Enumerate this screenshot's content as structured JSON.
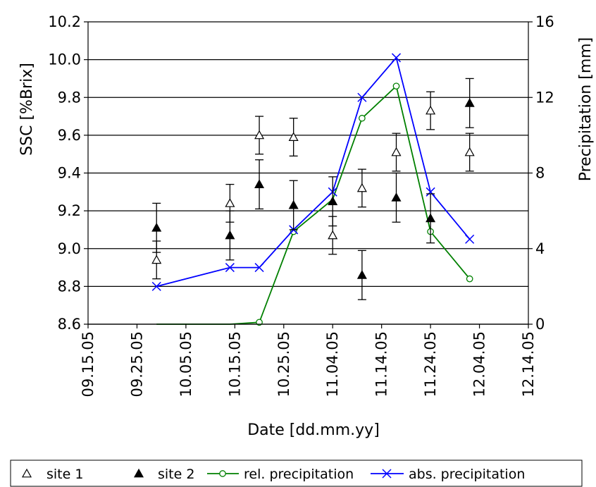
{
  "chart_data": {
    "type": "line",
    "xlabel": "Date [dd.mm.yy]",
    "ylabel_left": "SSC [%Brix]",
    "ylabel_right": "Precipitation [mm]",
    "x_ticks": [
      "09.15.05",
      "09.25.05",
      "10.05.05",
      "10.15.05",
      "10.25.05",
      "11.04.05",
      "11.14.05",
      "11.24.05",
      "12.04.05",
      "12.14.05"
    ],
    "ylim_left": [
      8.6,
      10.2
    ],
    "ylim_right": [
      0,
      16
    ],
    "y_ticks_left": [
      "8.6",
      "8.8",
      "9.0",
      "9.2",
      "9.4",
      "9.6",
      "9.8",
      "10.0",
      "10.2"
    ],
    "y_ticks_right": [
      "0",
      "4",
      "8",
      "12",
      "16"
    ],
    "grid": "horizontal",
    "legend_position": "bottom",
    "series": [
      {
        "name": "site 1",
        "axis": "left",
        "marker": "open-triangle",
        "color": "#000000",
        "points": [
          {
            "x": "09.29.05",
            "y": 8.94,
            "err": 0.1
          },
          {
            "x": "10.14.05",
            "y": 9.24,
            "err": 0.1
          },
          {
            "x": "10.20.05",
            "y": 9.6,
            "err": 0.1
          },
          {
            "x": "10.27.05",
            "y": 9.59,
            "err": 0.1
          },
          {
            "x": "11.04.05",
            "y": 9.07,
            "err": 0.1
          },
          {
            "x": "11.10.05",
            "y": 9.32,
            "err": 0.1
          },
          {
            "x": "11.17.05",
            "y": 9.51,
            "err": 0.1
          },
          {
            "x": "11.24.05",
            "y": 9.73,
            "err": 0.1
          },
          {
            "x": "12.02.05",
            "y": 9.51,
            "err": 0.1
          }
        ]
      },
      {
        "name": "site 2",
        "axis": "left",
        "marker": "filled-triangle",
        "color": "#000000",
        "points": [
          {
            "x": "09.29.05",
            "y": 9.11,
            "err": 0.13
          },
          {
            "x": "10.14.05",
            "y": 9.07,
            "err": 0.13
          },
          {
            "x": "10.20.05",
            "y": 9.34,
            "err": 0.13
          },
          {
            "x": "10.27.05",
            "y": 9.23,
            "err": 0.13
          },
          {
            "x": "11.04.05",
            "y": 9.25,
            "err": 0.13
          },
          {
            "x": "11.10.05",
            "y": 8.86,
            "err": 0.13
          },
          {
            "x": "11.17.05",
            "y": 9.27,
            "err": 0.13
          },
          {
            "x": "11.24.05",
            "y": 9.16,
            "err": 0.13
          },
          {
            "x": "12.02.05",
            "y": 9.77,
            "err": 0.13
          }
        ]
      },
      {
        "name": "rel. precipitation",
        "axis": "right",
        "marker": "open-circle",
        "color": "#008000",
        "points": [
          {
            "x": "09.29.05",
            "y": 0,
            "marker": false
          },
          {
            "x": "10.14.05",
            "y": 0,
            "marker": false
          },
          {
            "x": "10.20.05",
            "y": 0.1,
            "marker": true
          },
          {
            "x": "10.27.05",
            "y": 4.9,
            "marker": true
          },
          {
            "x": "11.04.05",
            "y": 6.6,
            "marker": false
          },
          {
            "x": "11.10.05",
            "y": 10.9,
            "marker": true
          },
          {
            "x": "11.17.05",
            "y": 12.6,
            "marker": true
          },
          {
            "x": "11.24.05",
            "y": 4.9,
            "marker": true
          },
          {
            "x": "12.02.05",
            "y": 2.4,
            "marker": true
          }
        ]
      },
      {
        "name": "abs. precipitation",
        "axis": "right",
        "marker": "x",
        "color": "#0000ff",
        "points": [
          {
            "x": "09.29.05",
            "y": 2
          },
          {
            "x": "10.14.05",
            "y": 3
          },
          {
            "x": "10.20.05",
            "y": 3
          },
          {
            "x": "10.27.05",
            "y": 5
          },
          {
            "x": "11.04.05",
            "y": 7
          },
          {
            "x": "11.10.05",
            "y": 12
          },
          {
            "x": "11.17.05",
            "y": 14.1
          },
          {
            "x": "11.24.05",
            "y": 7
          },
          {
            "x": "12.02.05",
            "y": 4.5
          }
        ]
      }
    ]
  }
}
